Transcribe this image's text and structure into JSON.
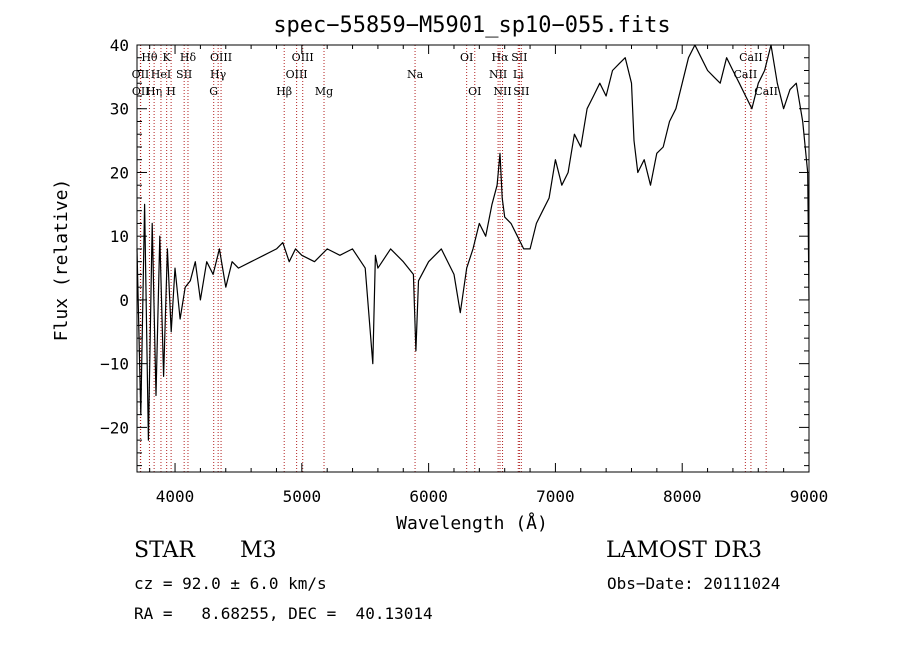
{
  "chart_data": {
    "type": "line",
    "title": "spec−55859−M5901_sp10−055.fits",
    "xlabel": "Wavelength (Å)",
    "ylabel": "Flux (relative)",
    "xlim": [
      3700,
      9000
    ],
    "ylim": [
      -27,
      40
    ],
    "xticks": [
      4000,
      5000,
      6000,
      7000,
      8000,
      9000
    ],
    "yticks": [
      -20,
      -10,
      0,
      10,
      20,
      30,
      40
    ],
    "ytick_labels": [
      "−20",
      "−10",
      "0",
      "10",
      "20",
      "30",
      "40"
    ],
    "line_color": "#000000",
    "marker_color": "#b22222",
    "series": [
      {
        "name": "flux",
        "x": [
          3700,
          3730,
          3760,
          3790,
          3820,
          3850,
          3880,
          3910,
          3940,
          3970,
          4000,
          4040,
          4080,
          4120,
          4160,
          4200,
          4250,
          4300,
          4350,
          4400,
          4450,
          4500,
          4600,
          4700,
          4800,
          4850,
          4900,
          4950,
          5000,
          5100,
          5200,
          5300,
          5400,
          5500,
          5560,
          5580,
          5600,
          5700,
          5800,
          5880,
          5900,
          5920,
          6000,
          6100,
          6200,
          6250,
          6300,
          6350,
          6400,
          6450,
          6500,
          6540,
          6563,
          6580,
          6600,
          6650,
          6700,
          6750,
          6800,
          6850,
          6900,
          6950,
          7000,
          7050,
          7100,
          7150,
          7200,
          7250,
          7300,
          7350,
          7400,
          7450,
          7500,
          7550,
          7600,
          7620,
          7650,
          7700,
          7750,
          7800,
          7850,
          7900,
          7950,
          8000,
          8050,
          8100,
          8150,
          8200,
          8250,
          8300,
          8350,
          8400,
          8450,
          8500,
          8550,
          8600,
          8650,
          8700,
          8750,
          8800,
          8850,
          8900,
          8950,
          8990,
          9000
        ],
        "y": [
          8,
          -18,
          15,
          -22,
          12,
          -15,
          10,
          -12,
          8,
          -5,
          5,
          -3,
          2,
          3,
          6,
          0,
          6,
          4,
          8,
          2,
          6,
          5,
          6,
          7,
          8,
          9,
          6,
          8,
          7,
          6,
          8,
          7,
          8,
          5,
          -10,
          7,
          5,
          8,
          6,
          4,
          -8,
          3,
          6,
          8,
          4,
          -2,
          5,
          8,
          12,
          10,
          15,
          18,
          23,
          16,
          13,
          12,
          10,
          8,
          8,
          12,
          14,
          16,
          22,
          18,
          20,
          26,
          24,
          30,
          32,
          34,
          32,
          36,
          37,
          38,
          34,
          25,
          20,
          22,
          18,
          23,
          24,
          28,
          30,
          34,
          38,
          42,
          38,
          36,
          35,
          34,
          38,
          36,
          34,
          32,
          30,
          34,
          36,
          40,
          34,
          30,
          33,
          34,
          28,
          20,
          0
        ]
      }
    ],
    "line_markers": [
      {
        "label": "Hθ",
        "x": 3798,
        "row": 0
      },
      {
        "label": "OII",
        "x": 3727,
        "row": 1
      },
      {
        "label": "OII",
        "x": 3729,
        "row": 2
      },
      {
        "label": "Hη",
        "x": 3835,
        "row": 2
      },
      {
        "label": "HeI",
        "x": 3889,
        "row": 1
      },
      {
        "label": "K",
        "x": 3934,
        "row": 0
      },
      {
        "label": "SII",
        "x": 4072,
        "row": 1
      },
      {
        "label": "H",
        "x": 3969,
        "row": 2
      },
      {
        "label": "Hδ",
        "x": 4102,
        "row": 0
      },
      {
        "label": "OIII",
        "x": 4363,
        "row": 0
      },
      {
        "label": "Hγ",
        "x": 4340,
        "row": 1
      },
      {
        "label": "G",
        "x": 4305,
        "row": 2
      },
      {
        "label": "Hβ",
        "x": 4861,
        "row": 2
      },
      {
        "label": "OIII",
        "x": 5007,
        "row": 0
      },
      {
        "label": "OIII",
        "x": 4959,
        "row": 1
      },
      {
        "label": "Mg",
        "x": 5175,
        "row": 2
      },
      {
        "label": "Na",
        "x": 5893,
        "row": 1
      },
      {
        "label": "OI",
        "x": 6300,
        "row": 0
      },
      {
        "label": "OI",
        "x": 6364,
        "row": 2
      },
      {
        "label": "Hα",
        "x": 6563,
        "row": 0
      },
      {
        "label": "NII",
        "x": 6548,
        "row": 1
      },
      {
        "label": "NII",
        "x": 6583,
        "row": 2
      },
      {
        "label": "SII",
        "x": 6716,
        "row": 0
      },
      {
        "label": "Li",
        "x": 6707,
        "row": 1
      },
      {
        "label": "SII",
        "x": 6731,
        "row": 2
      },
      {
        "label": "CaII",
        "x": 8542,
        "row": 0
      },
      {
        "label": "CaII",
        "x": 8498,
        "row": 1
      },
      {
        "label": "CaII",
        "x": 8662,
        "row": 2
      }
    ]
  },
  "info": {
    "object_class": "STAR",
    "subclass": "M3",
    "survey": "LAMOST DR3",
    "cz": "cz = 92.0 ± 6.0 km/s",
    "obs_date": "Obs−Date: 20111024",
    "coords": "RA =   8.68255, DEC =  40.13014"
  }
}
